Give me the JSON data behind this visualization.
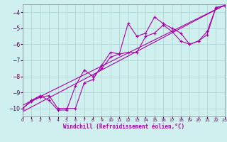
{
  "title": "Windchill (Refroidissement éolien,°C)",
  "bg_color": "#cff0ee",
  "grid_color": "#a8d4d0",
  "line_color": "#aa00aa",
  "xlim": [
    0,
    23
  ],
  "ylim": [
    -10.5,
    -3.5
  ],
  "xticks": [
    0,
    1,
    2,
    3,
    4,
    5,
    6,
    7,
    8,
    9,
    10,
    11,
    12,
    13,
    14,
    15,
    16,
    17,
    18,
    19,
    20,
    21,
    22,
    23
  ],
  "yticks": [
    -10,
    -9,
    -8,
    -7,
    -6,
    -5,
    -4
  ],
  "curve1_x": [
    0,
    1,
    2,
    3,
    4,
    5,
    6,
    7,
    8,
    9,
    10,
    11,
    12,
    13,
    14,
    15,
    16,
    17,
    18,
    19,
    20,
    21,
    22,
    23
  ],
  "curve1_y": [
    -10.0,
    -9.55,
    -9.3,
    -9.2,
    -10.0,
    -10.0,
    -10.0,
    -8.4,
    -8.2,
    -7.3,
    -6.5,
    -6.6,
    -4.7,
    -5.5,
    -5.3,
    -4.3,
    -4.7,
    -5.0,
    -5.3,
    -6.0,
    -5.8,
    -5.2,
    -3.7,
    -3.6
  ],
  "curve2_x": [
    0,
    1,
    2,
    3,
    4,
    5,
    6,
    7,
    8,
    9,
    10,
    11,
    12,
    13,
    14,
    15,
    16,
    17,
    18,
    19,
    20,
    21,
    22,
    23
  ],
  "curve2_y": [
    -10.0,
    -9.5,
    -9.2,
    -9.5,
    -10.1,
    -10.1,
    -8.6,
    -7.6,
    -8.0,
    -7.5,
    -6.8,
    -6.6,
    -6.5,
    -6.5,
    -5.5,
    -5.3,
    -4.8,
    -5.2,
    -5.8,
    -6.0,
    -5.8,
    -5.4,
    -3.7,
    -3.6
  ],
  "straight_lines": [
    {
      "x0": 0,
      "y0": -9.8,
      "x1": 23,
      "y1": -3.55
    },
    {
      "x0": 0,
      "y0": -10.2,
      "x1": 23,
      "y1": -3.55
    }
  ]
}
